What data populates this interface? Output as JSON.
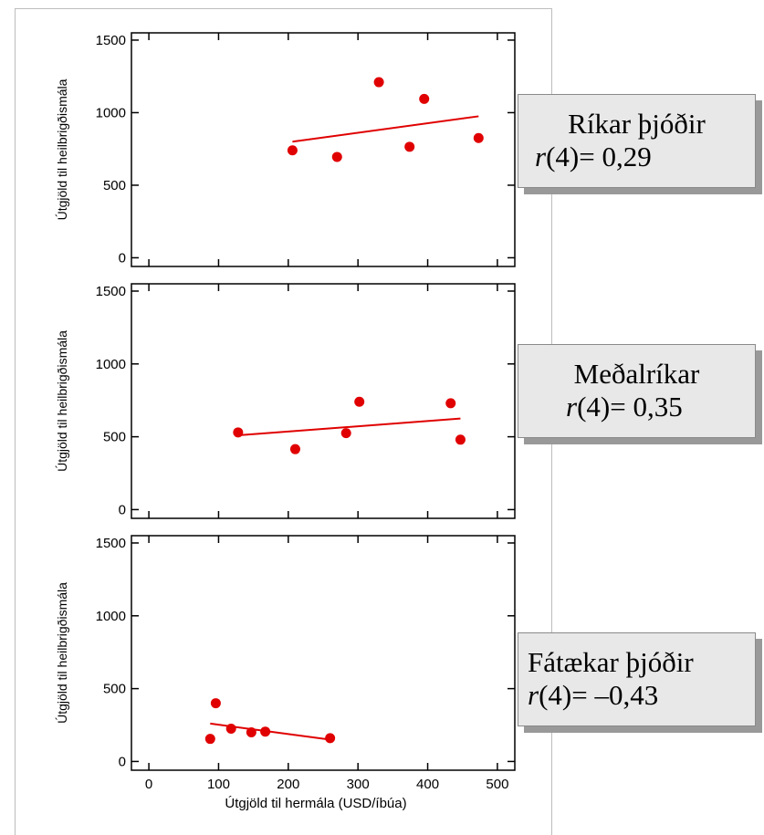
{
  "chart_data": [
    {
      "type": "scatter",
      "title": "Ríkar þjóðir",
      "ylabel": "Útgjöld til heilbrigðismála",
      "xlabel": "",
      "xlim": [
        -25,
        525
      ],
      "ylim": [
        -60,
        1550
      ],
      "yticks": [
        0,
        500,
        1000,
        1500
      ],
      "xticks": [
        0,
        100,
        200,
        300,
        400,
        500
      ],
      "points": [
        [
          206,
          740
        ],
        [
          270,
          695
        ],
        [
          330,
          1210
        ],
        [
          374,
          765
        ],
        [
          395,
          1095
        ],
        [
          473,
          825
        ]
      ],
      "trend": [
        [
          206,
          800
        ],
        [
          473,
          975
        ]
      ],
      "annotation": {
        "title": "Ríkar þjóðir",
        "stat_r": "r",
        "stat_rest": "(4)= 0,29"
      },
      "color": "#e00000"
    },
    {
      "type": "scatter",
      "title": "Meðalríkar",
      "ylabel": "Útgjöld til heilbrigðismála",
      "xlabel": "",
      "xlim": [
        -25,
        525
      ],
      "ylim": [
        -60,
        1550
      ],
      "yticks": [
        0,
        500,
        1000,
        1500
      ],
      "xticks": [
        0,
        100,
        200,
        300,
        400,
        500
      ],
      "points": [
        [
          128,
          530
        ],
        [
          210,
          415
        ],
        [
          283,
          525
        ],
        [
          302,
          740
        ],
        [
          433,
          730
        ],
        [
          447,
          480
        ]
      ],
      "trend": [
        [
          128,
          510
        ],
        [
          447,
          625
        ]
      ],
      "annotation": {
        "title": "Meðalríkar",
        "stat_r": "r",
        "stat_rest": "(4)= 0,35"
      },
      "color": "#e00000"
    },
    {
      "type": "scatter",
      "title": "Fátækar þjóðir",
      "ylabel": "Útgjöld til heilbrigðismála",
      "xlabel": "Útgjöld til hermála (USD/íbúa)",
      "xlim": [
        -25,
        525
      ],
      "ylim": [
        -60,
        1550
      ],
      "yticks": [
        0,
        500,
        1000,
        1500
      ],
      "xticks": [
        0,
        100,
        200,
        300,
        400,
        500
      ],
      "xticklabels": [
        "0",
        "100",
        "200",
        "300",
        "400",
        "500"
      ],
      "points": [
        [
          88,
          155
        ],
        [
          96,
          400
        ],
        [
          118,
          225
        ],
        [
          147,
          200
        ],
        [
          167,
          205
        ],
        [
          260,
          160
        ]
      ],
      "trend": [
        [
          88,
          260
        ],
        [
          260,
          150
        ]
      ],
      "annotation": {
        "title": "Fátækar þjóðir",
        "stat_r": "r",
        "stat_rest": "(4)= –0,43"
      },
      "color": "#e00000"
    }
  ]
}
